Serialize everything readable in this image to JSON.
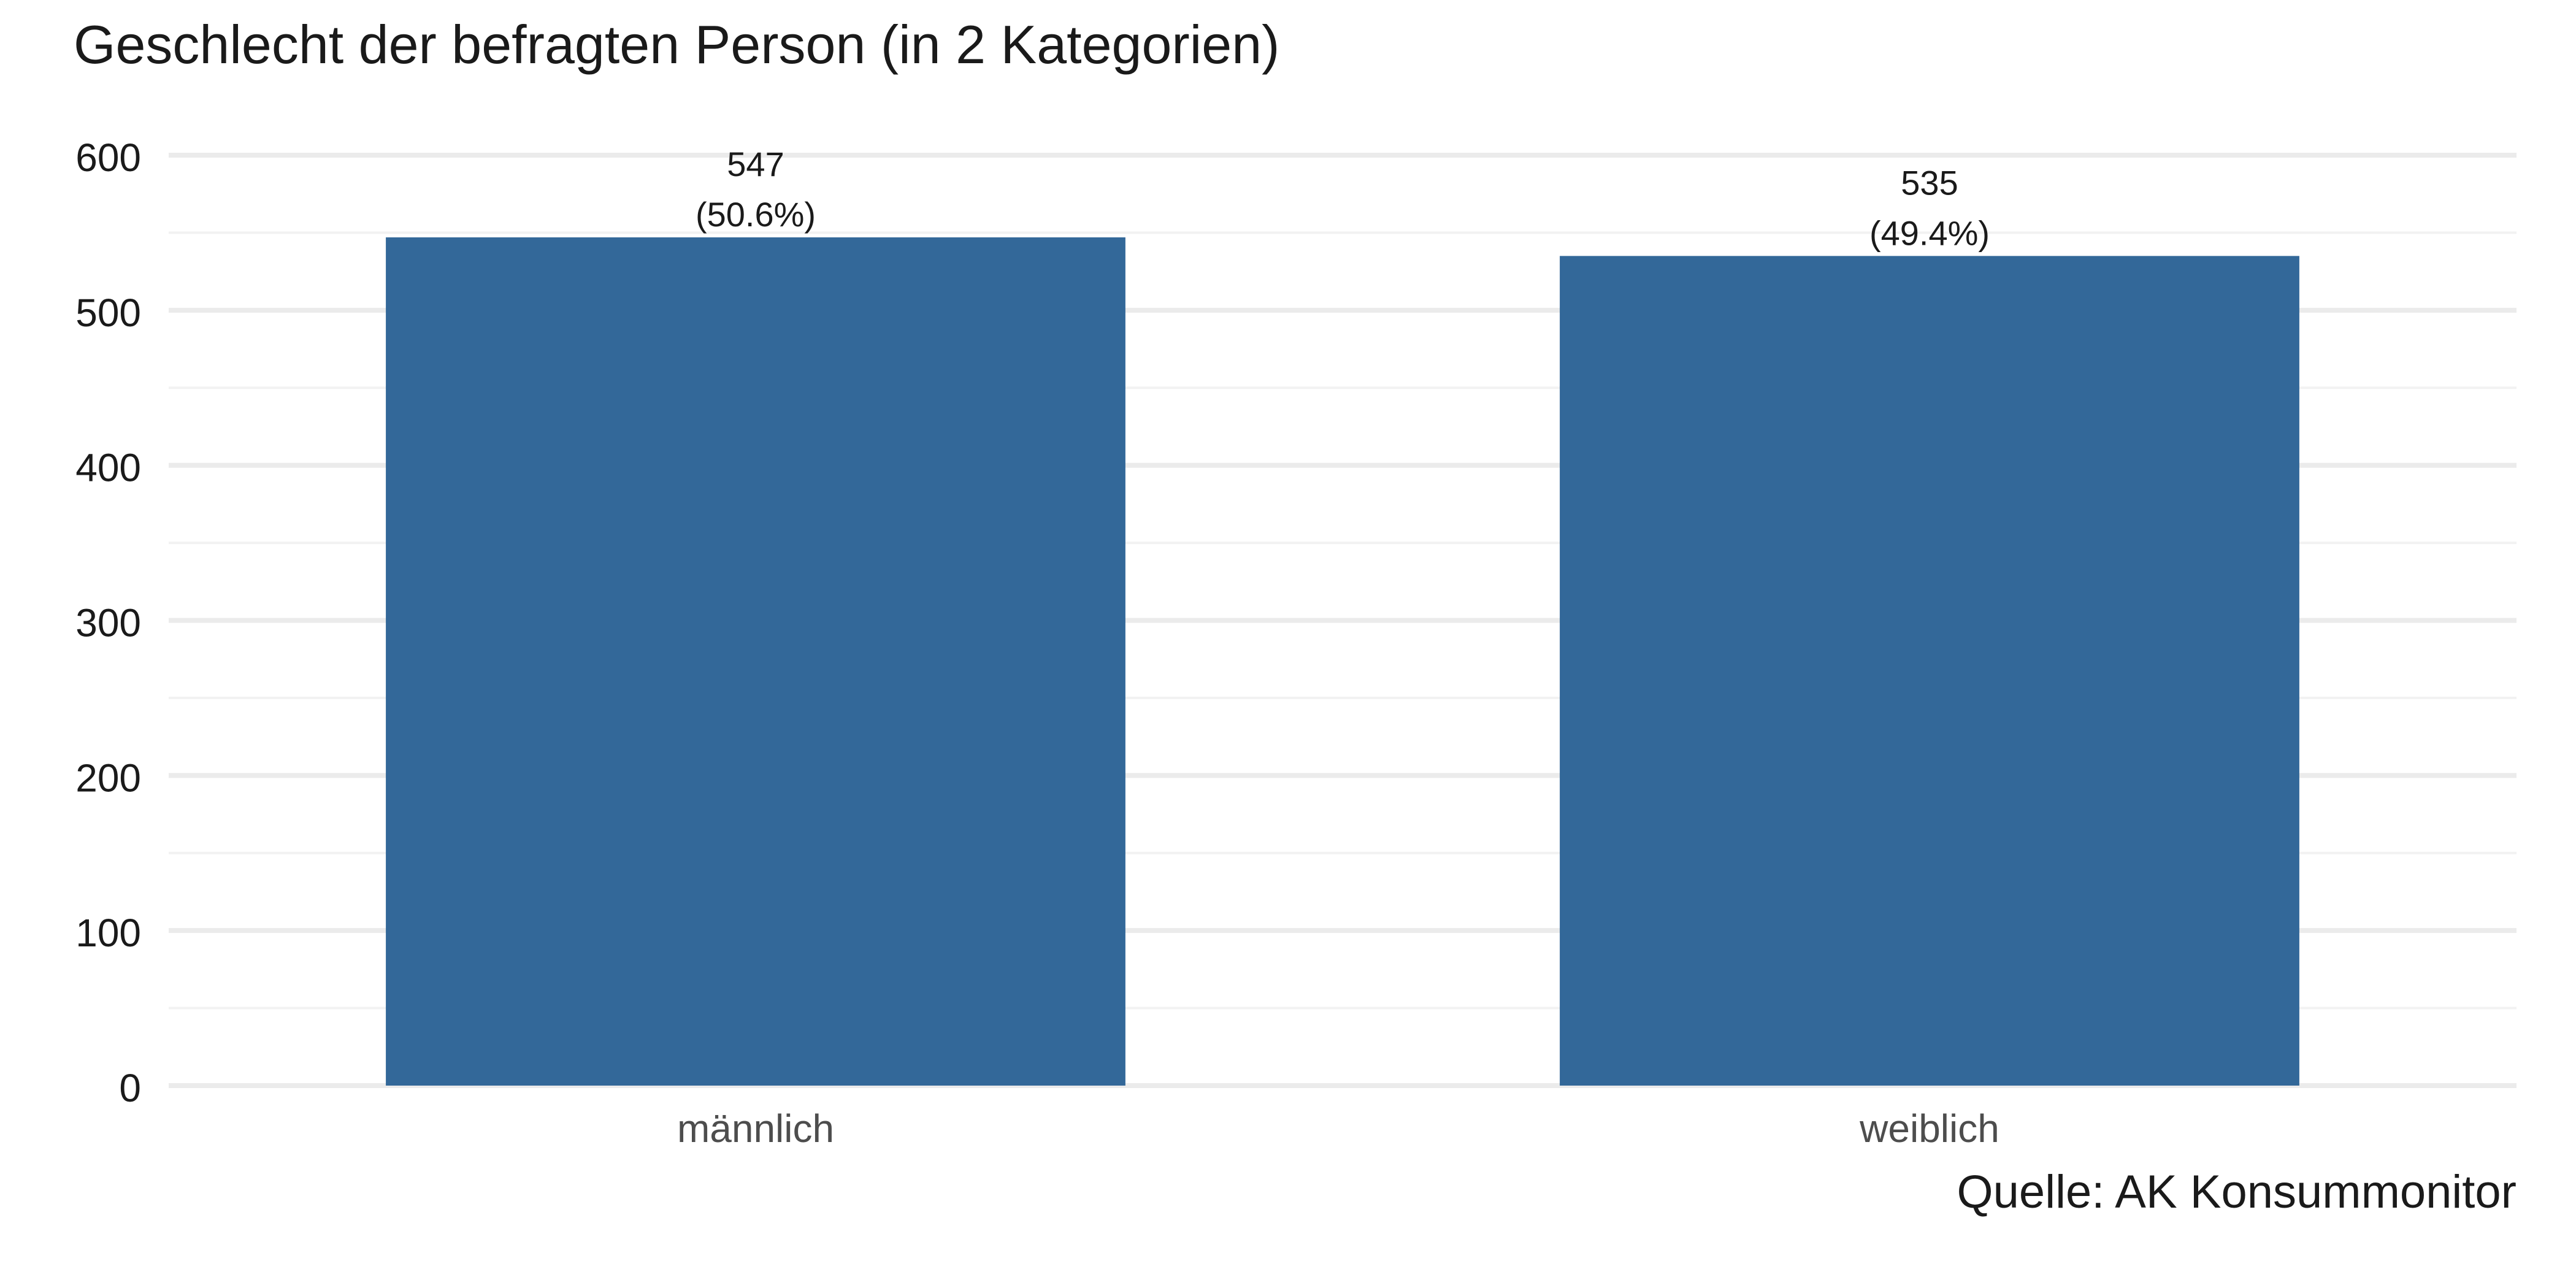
{
  "chart_data": {
    "type": "bar",
    "title": "Geschlecht der befragten Person (in 2 Kategorien)",
    "caption": "Quelle: AK Konsummonitor",
    "xlabel": "",
    "ylabel": "",
    "categories": [
      "männlich",
      "weiblich"
    ],
    "values": [
      547,
      535
    ],
    "value_labels": [
      "547",
      "535"
    ],
    "percent_labels": [
      "(50.6%)",
      "(49.4%)"
    ],
    "ylim": [
      0,
      600
    ],
    "yticks": [
      0,
      100,
      200,
      300,
      400,
      500,
      600
    ],
    "ytick_labels": [
      "0",
      "100",
      "200",
      "300",
      "400",
      "500",
      "600"
    ],
    "grid": true,
    "legend": "none",
    "colors": {
      "bar": "#336899",
      "grid_major": "#ebebeb",
      "grid_minor": "#f2f2f2",
      "text": "#1a1a1a",
      "category_text": "#4d4d4d"
    }
  }
}
